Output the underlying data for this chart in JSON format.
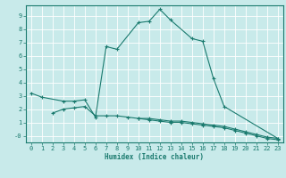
{
  "xlabel": "Humidex (Indice chaleur)",
  "ylabel": "",
  "background_color": "#c8eaea",
  "grid_color": "#ffffff",
  "line_color": "#1a7a6e",
  "xlim": [
    -0.5,
    23.5
  ],
  "ylim": [
    -0.5,
    9.8
  ],
  "xticks": [
    0,
    1,
    2,
    3,
    4,
    5,
    6,
    7,
    8,
    9,
    10,
    11,
    12,
    13,
    14,
    15,
    16,
    17,
    18,
    19,
    20,
    21,
    22,
    23
  ],
  "yticks": [
    0,
    1,
    2,
    3,
    4,
    5,
    6,
    7,
    8,
    9
  ],
  "series": [
    {
      "x": [
        0,
        1,
        3,
        4,
        5,
        6,
        7,
        8,
        10,
        11,
        12,
        13,
        15,
        16,
        17,
        18,
        23
      ],
      "y": [
        3.2,
        2.9,
        2.6,
        2.6,
        2.7,
        1.4,
        6.7,
        6.5,
        8.5,
        8.6,
        9.5,
        8.7,
        7.3,
        7.1,
        4.3,
        2.2,
        -0.2
      ]
    },
    {
      "x": [
        2,
        3,
        4,
        5,
        6,
        7,
        8,
        9,
        10,
        11,
        12,
        13,
        14,
        15,
        16,
        17,
        18,
        19,
        20,
        21,
        22,
        23
      ],
      "y": [
        1.7,
        2.0,
        2.1,
        2.2,
        1.5,
        1.5,
        1.5,
        1.4,
        1.3,
        1.3,
        1.2,
        1.1,
        1.1,
        1.0,
        0.9,
        0.8,
        0.7,
        0.5,
        0.3,
        0.1,
        -0.1,
        -0.2
      ]
    },
    {
      "x": [
        10,
        11,
        12,
        13,
        14,
        15,
        16,
        17,
        18,
        19,
        20,
        21,
        22,
        23
      ],
      "y": [
        1.3,
        1.2,
        1.1,
        1.0,
        1.0,
        0.9,
        0.8,
        0.7,
        0.6,
        0.4,
        0.2,
        0.0,
        -0.2,
        -0.3
      ]
    }
  ]
}
